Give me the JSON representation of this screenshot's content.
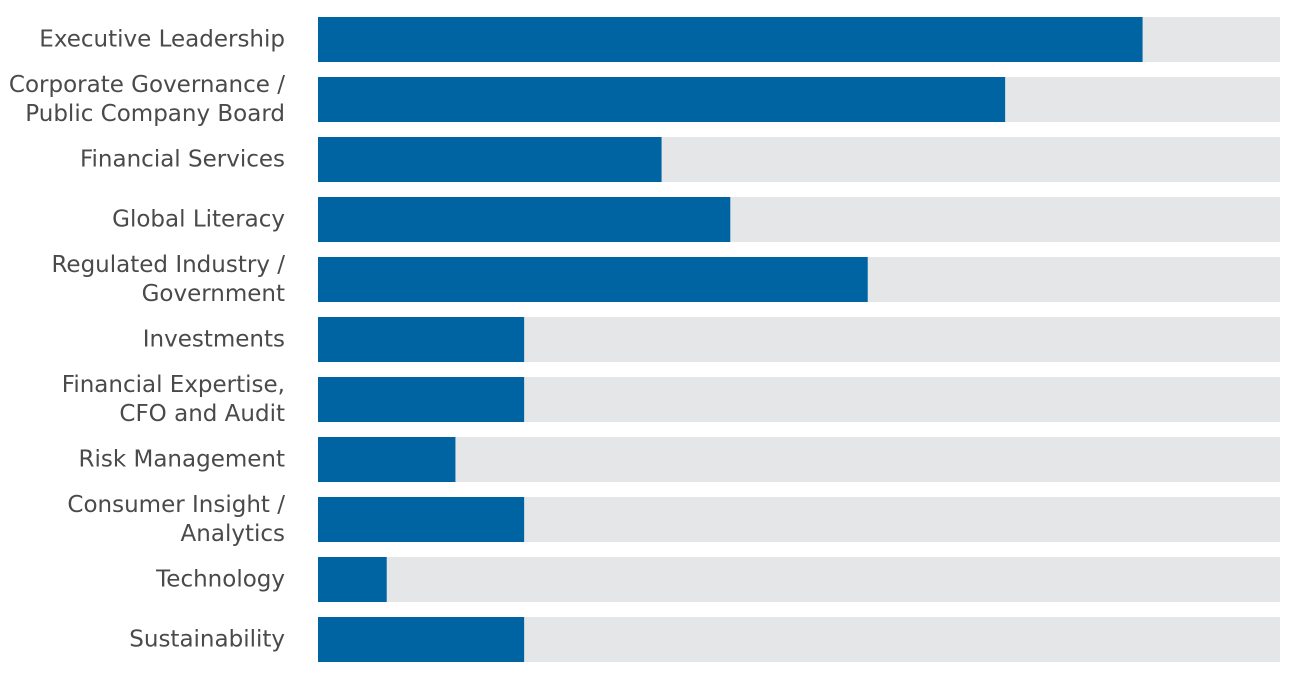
{
  "chart_data": {
    "type": "bar",
    "orientation": "horizontal",
    "title": "",
    "xlabel": "",
    "ylabel": "",
    "xlim": [
      0,
      14
    ],
    "grid": false,
    "legend": "none",
    "categories": [
      [
        "Executive Leadership"
      ],
      [
        "Corporate Governance /",
        "Public Company Board"
      ],
      [
        "Financial Services"
      ],
      [
        "Global Literacy"
      ],
      [
        "Regulated Industry /",
        "Government"
      ],
      [
        "Investments"
      ],
      [
        "Financial Expertise,",
        "CFO and Audit"
      ],
      [
        "Risk Management"
      ],
      [
        "Consumer Insight /",
        "Analytics"
      ],
      [
        "Technology"
      ],
      [
        "Sustainability"
      ]
    ],
    "values": [
      12,
      10,
      5,
      6,
      8,
      3,
      3,
      2,
      3,
      1,
      3
    ],
    "colors": {
      "bar": "#0063a2",
      "track": "#e5e6e8",
      "label": "#4a4a4a"
    }
  }
}
